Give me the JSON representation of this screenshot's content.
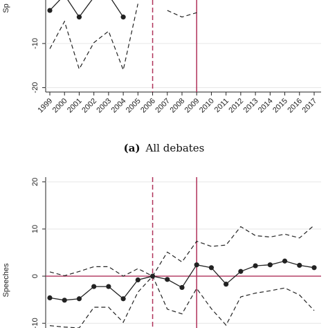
{
  "caption": {
    "label": "(a)",
    "text": "All debates"
  },
  "chart_data": [
    {
      "type": "line",
      "panel": "top",
      "ylabel": "Sp",
      "ylim": [
        -21,
        3
      ],
      "yticks": [
        -10,
        -20
      ],
      "ytick_labels": [
        "-10",
        "-20"
      ],
      "x": [
        "1999",
        "2000",
        "2001",
        "2002",
        "2003",
        "2004",
        "2005",
        "2006",
        "2007",
        "2008",
        "2009",
        "2010",
        "2011",
        "2012",
        "2013",
        "2014",
        "2015",
        "2016",
        "2017"
      ],
      "series": [
        {
          "role": "estimate",
          "values": [
            -2.5,
            1.0,
            -4.0,
            0.5,
            1.0,
            -4.0,
            null,
            null,
            null,
            null,
            null,
            null,
            null,
            null,
            null,
            null,
            null,
            null,
            null
          ],
          "markers": true
        },
        {
          "role": "upper-ci",
          "values": [
            null,
            null,
            null,
            null,
            null,
            null,
            null,
            null,
            -2.5,
            -4.0,
            -3.0,
            null,
            null,
            null,
            null,
            null,
            null,
            null,
            null
          ]
        },
        {
          "role": "lower-ci",
          "values": [
            -11.2,
            -5.0,
            -15.8,
            -9.8,
            -7.2,
            -16.0,
            -1.0,
            null,
            null,
            null,
            null,
            null,
            null,
            null,
            null,
            null,
            null,
            null,
            null
          ]
        }
      ],
      "vlines": [
        {
          "x": "2006",
          "style": "dashed",
          "color": "#b0325a"
        },
        {
          "x": "2009",
          "style": "solid",
          "color": "#b0325a"
        }
      ]
    },
    {
      "type": "line",
      "panel": "bottom",
      "ylabel": "Speeches",
      "ylim": [
        -11,
        21
      ],
      "yticks": [
        20,
        10,
        0,
        -10
      ],
      "ytick_labels": [
        "20",
        "10",
        "0",
        "-10"
      ],
      "x": [
        "1999",
        "2000",
        "2001",
        "2002",
        "2003",
        "2004",
        "2005",
        "2006",
        "2007",
        "2008",
        "2009",
        "2010",
        "2011",
        "2012",
        "2013",
        "2014",
        "2015",
        "2016",
        "2017"
      ],
      "hline": {
        "y": 0,
        "color": "#b0325a"
      },
      "series": [
        {
          "role": "estimate",
          "values": [
            -4.6,
            -5.1,
            -4.8,
            -2.2,
            -2.2,
            -4.8,
            -0.8,
            0.0,
            -0.7,
            -2.4,
            2.4,
            1.8,
            -1.7,
            1.0,
            2.2,
            2.4,
            3.2,
            2.3,
            1.8
          ],
          "markers": true
        },
        {
          "role": "upper-ci",
          "values": [
            0.9,
            0.1,
            1.0,
            2.0,
            2.0,
            0.0,
            1.6,
            0.0,
            5.1,
            3.0,
            7.4,
            6.3,
            6.6,
            10.5,
            8.6,
            8.3,
            8.9,
            8.1,
            10.8
          ]
        },
        {
          "role": "lower-ci",
          "values": [
            -10.5,
            -10.8,
            -11.0,
            -6.6,
            -6.6,
            -9.8,
            -3.4,
            0.0,
            -7.0,
            -8.0,
            -2.6,
            -6.9,
            -10.4,
            -4.4,
            -3.6,
            -3.1,
            -2.5,
            -4.0,
            -7.3
          ]
        }
      ],
      "vlines": [
        {
          "x": "2006",
          "style": "dashed",
          "color": "#b0325a"
        },
        {
          "x": "2009",
          "style": "solid",
          "color": "#b0325a"
        }
      ]
    }
  ]
}
